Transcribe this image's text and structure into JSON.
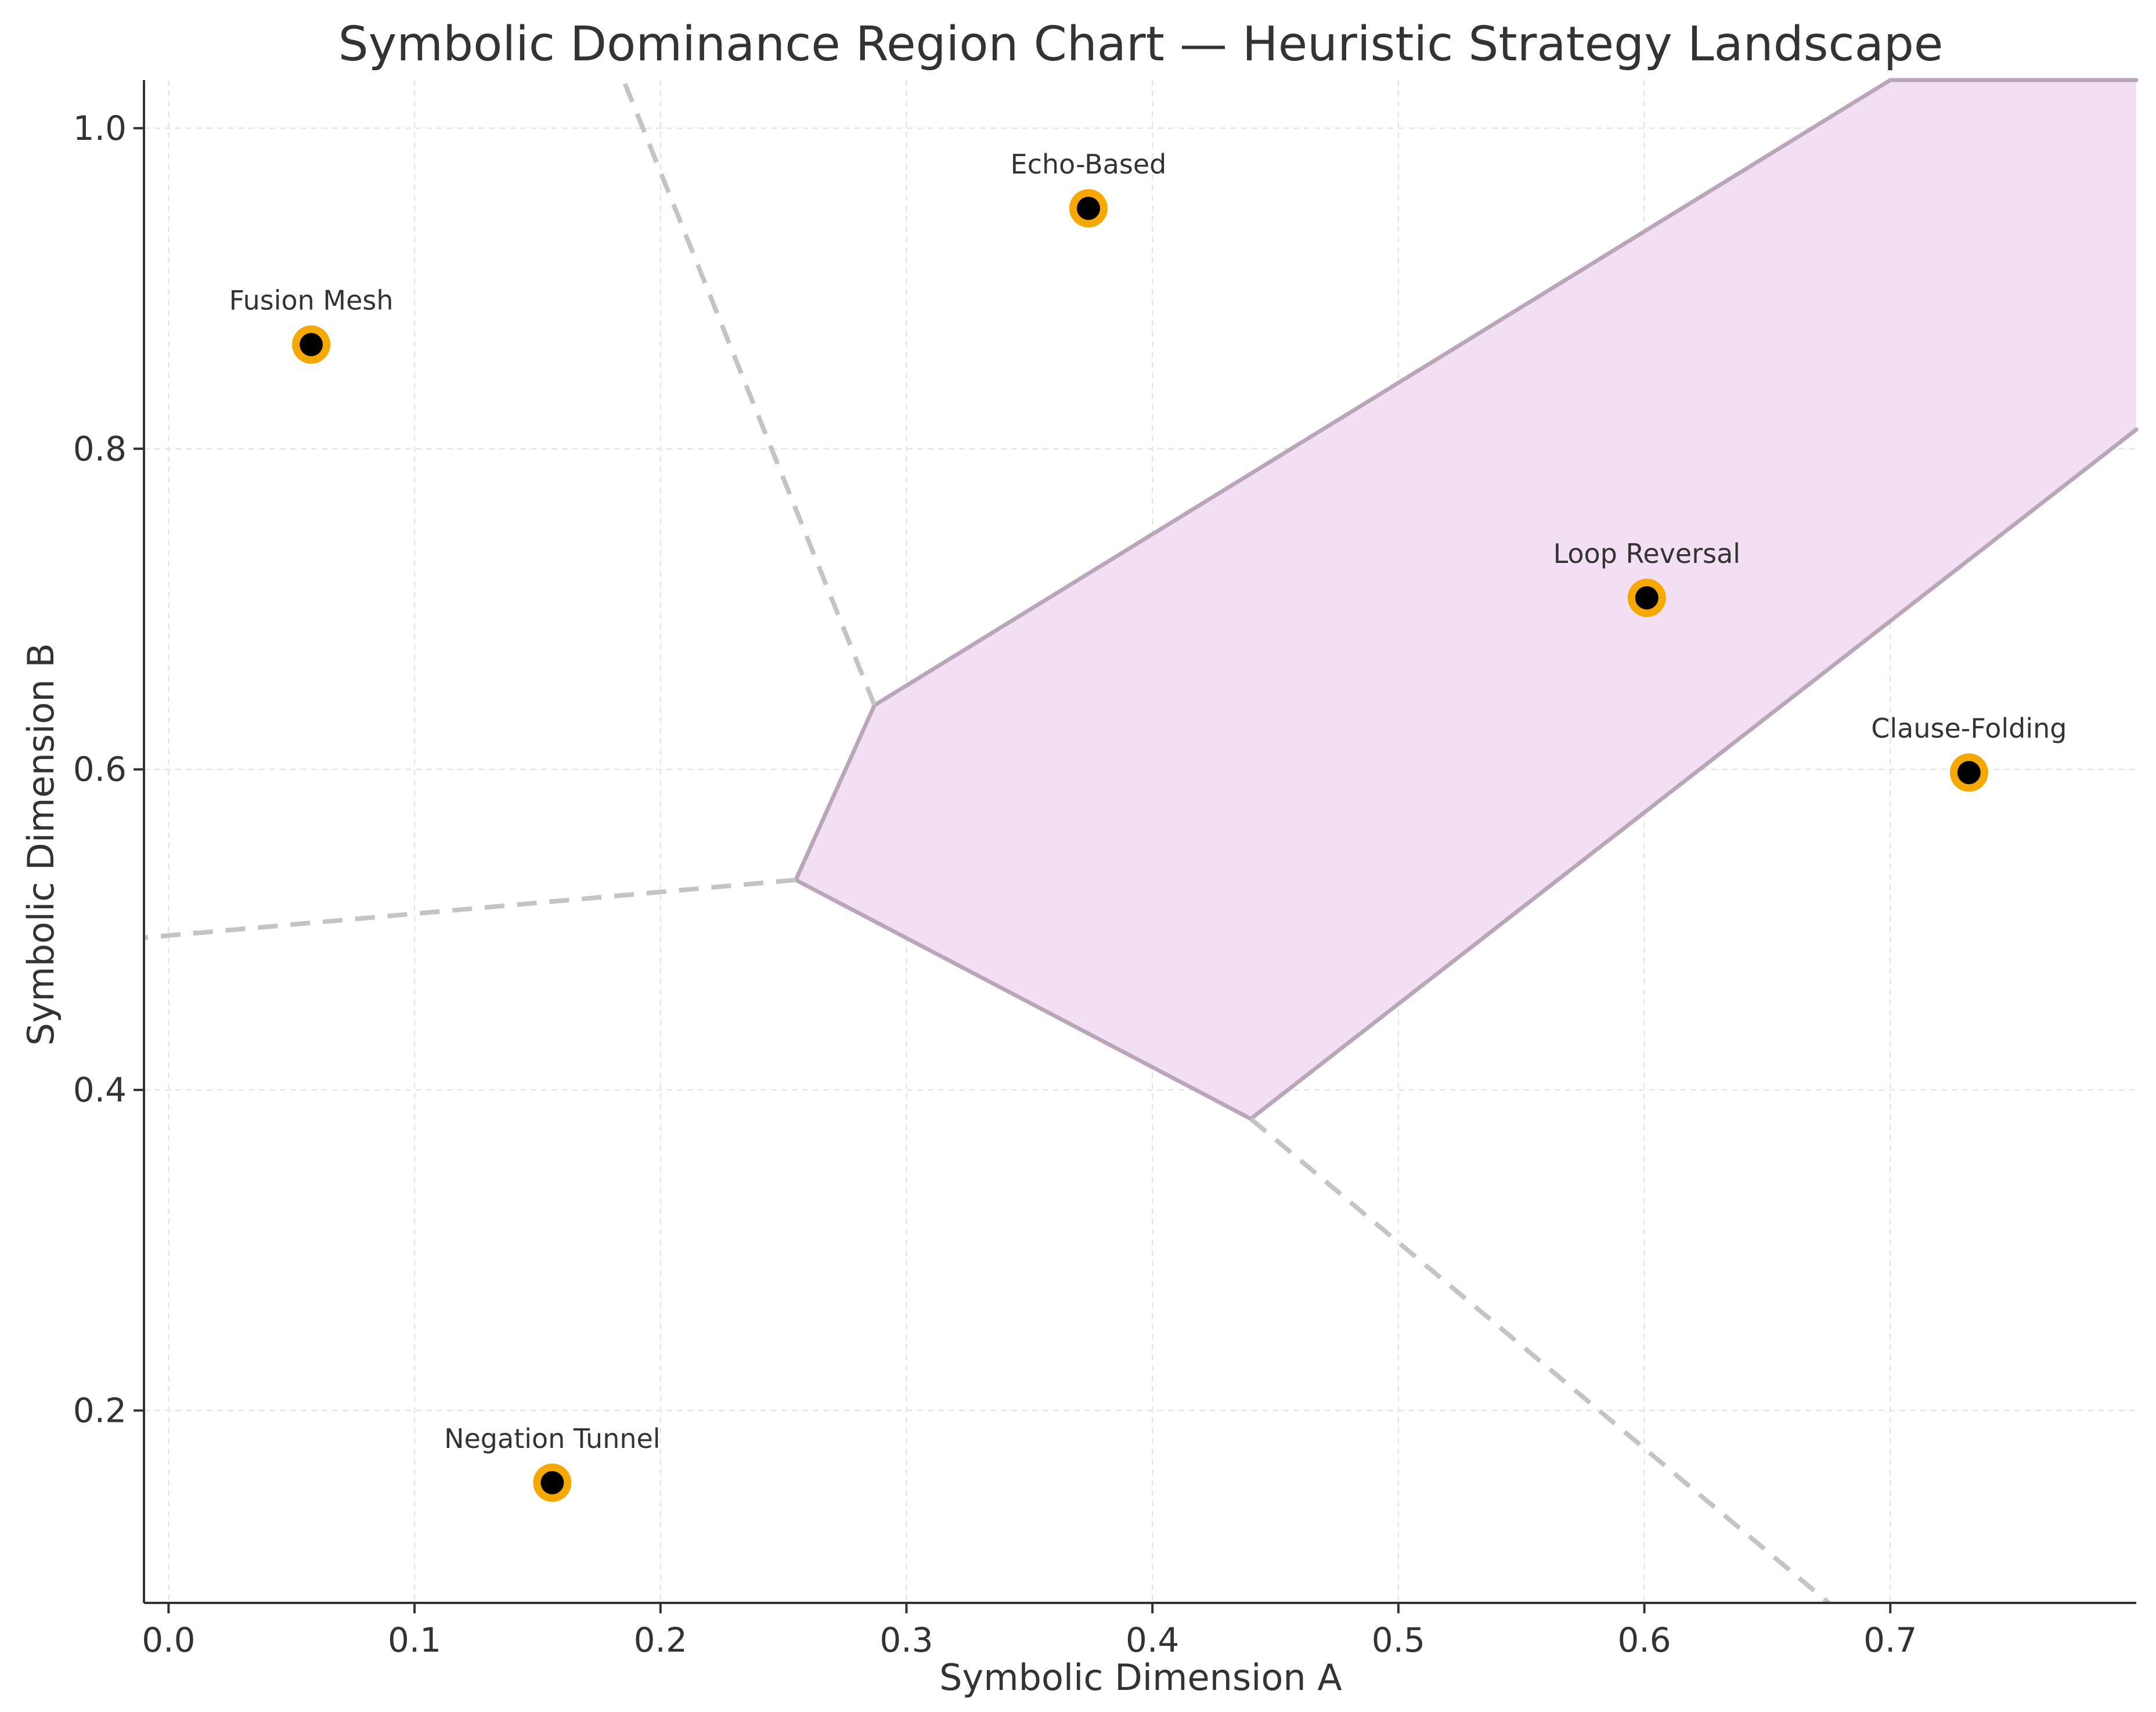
{
  "chart_data": {
    "type": "scatter",
    "title": "Symbolic Dominance Region Chart — Heuristic Strategy Landscape",
    "xlabel": "Symbolic Dimension A",
    "ylabel": "Symbolic Dimension B",
    "xlim": [
      -0.01,
      0.8
    ],
    "ylim": [
      0.08,
      1.03
    ],
    "grid": true,
    "x_ticks": [
      0.0,
      0.1,
      0.2,
      0.3,
      0.4,
      0.5,
      0.6,
      0.7
    ],
    "x_tick_labels": [
      "0.0",
      "0.1",
      "0.2",
      "0.3",
      "0.4",
      "0.5",
      "0.6",
      "0.7"
    ],
    "y_ticks": [
      0.2,
      0.4,
      0.6,
      0.8,
      1.0
    ],
    "y_tick_labels": [
      "0.2",
      "0.4",
      "0.6",
      "0.8",
      "1.0"
    ],
    "points": [
      {
        "label": "Fusion Mesh",
        "x": 0.058,
        "y": 0.865
      },
      {
        "label": "Echo-Based",
        "x": 0.374,
        "y": 0.95
      },
      {
        "label": "Loop Reversal",
        "x": 0.601,
        "y": 0.707
      },
      {
        "label": "Clause-Folding",
        "x": 0.732,
        "y": 0.598
      },
      {
        "label": "Negation Tunnel",
        "x": 0.156,
        "y": 0.155
      }
    ],
    "highlight_region": {
      "vertices": [
        [
          0.287,
          0.64
        ],
        [
          0.255,
          0.531
        ],
        [
          0.44,
          0.382
        ],
        [
          0.8,
          0.812
        ],
        [
          0.8,
          1.03
        ],
        [
          0.7,
          1.03
        ]
      ]
    },
    "boundary_lines": [
      {
        "points": [
          [
            0.287,
            0.64
          ],
          [
            0.185,
            1.03
          ]
        ]
      },
      {
        "points": [
          [
            0.255,
            0.531
          ],
          [
            -0.01,
            0.495
          ]
        ]
      },
      {
        "points": [
          [
            0.44,
            0.382
          ],
          [
            0.675,
            0.08
          ]
        ]
      }
    ],
    "colors": {
      "region_fill": "#f3dff3",
      "region_edge": "#b9a7b9",
      "boundary": "#c4c4c4",
      "marker_face": "#000000",
      "marker_edge": "#f5a800",
      "grid": "#e6e6e6",
      "axis": "#333333"
    }
  }
}
